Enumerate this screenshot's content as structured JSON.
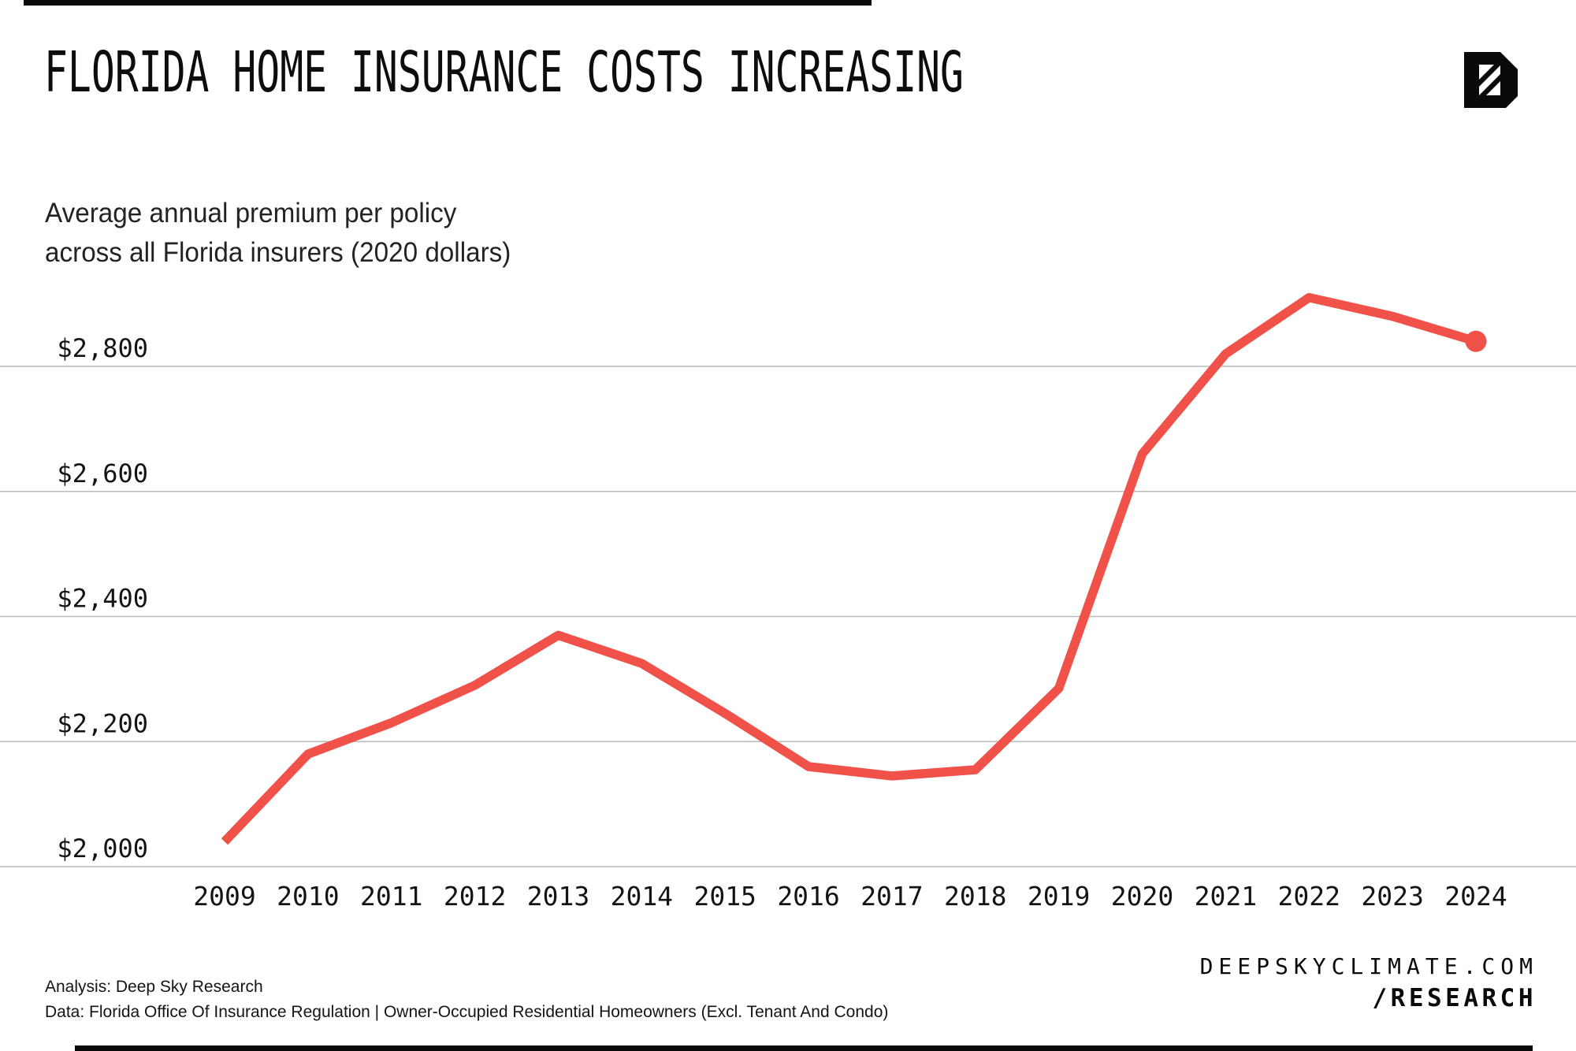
{
  "header": {
    "title": "FLORIDA HOME INSURANCE COSTS INCREASING"
  },
  "chart_data": {
    "type": "line",
    "title": "FLORIDA HOME INSURANCE COSTS INCREASING",
    "subtitle_lines": [
      "Average annual premium per policy",
      "across all Florida insurers (2020 dollars)"
    ],
    "x": [
      2009,
      2010,
      2011,
      2012,
      2013,
      2014,
      2015,
      2016,
      2017,
      2018,
      2019,
      2020,
      2021,
      2022,
      2023,
      2024
    ],
    "series": [
      {
        "name": "Average annual premium per policy (2020 dollars)",
        "values": [
          2040,
          2180,
          2230,
          2290,
          2370,
          2325,
          2245,
          2160,
          2145,
          2155,
          2285,
          2660,
          2820,
          2910,
          2880,
          2840
        ]
      }
    ],
    "y_ticks": [
      {
        "value": 2000,
        "label": "$2,000"
      },
      {
        "value": 2200,
        "label": "$2,200"
      },
      {
        "value": 2400,
        "label": "$2,400"
      },
      {
        "value": 2600,
        "label": "$2,600"
      },
      {
        "value": 2800,
        "label": "$2,800"
      }
    ],
    "ylim": [
      1950,
      2950
    ],
    "xlabel": "",
    "ylabel": "",
    "grid": true,
    "legend": "none",
    "line_color": "#F05148",
    "grid_color": "#b9b9b9",
    "text_color": "#141414",
    "endpoint_dot": true
  },
  "footer": {
    "analysis": "Analysis: Deep Sky Research",
    "data_source": "Data: Florida Office Of Insurance Regulation | Owner-Occupied Residential Homeowners (Excl. Tenant And Condo)",
    "site": "DEEPSKYCLIMATE.COM",
    "section": "/RESEARCH"
  },
  "logo": {
    "name": "deep-sky-logo"
  }
}
